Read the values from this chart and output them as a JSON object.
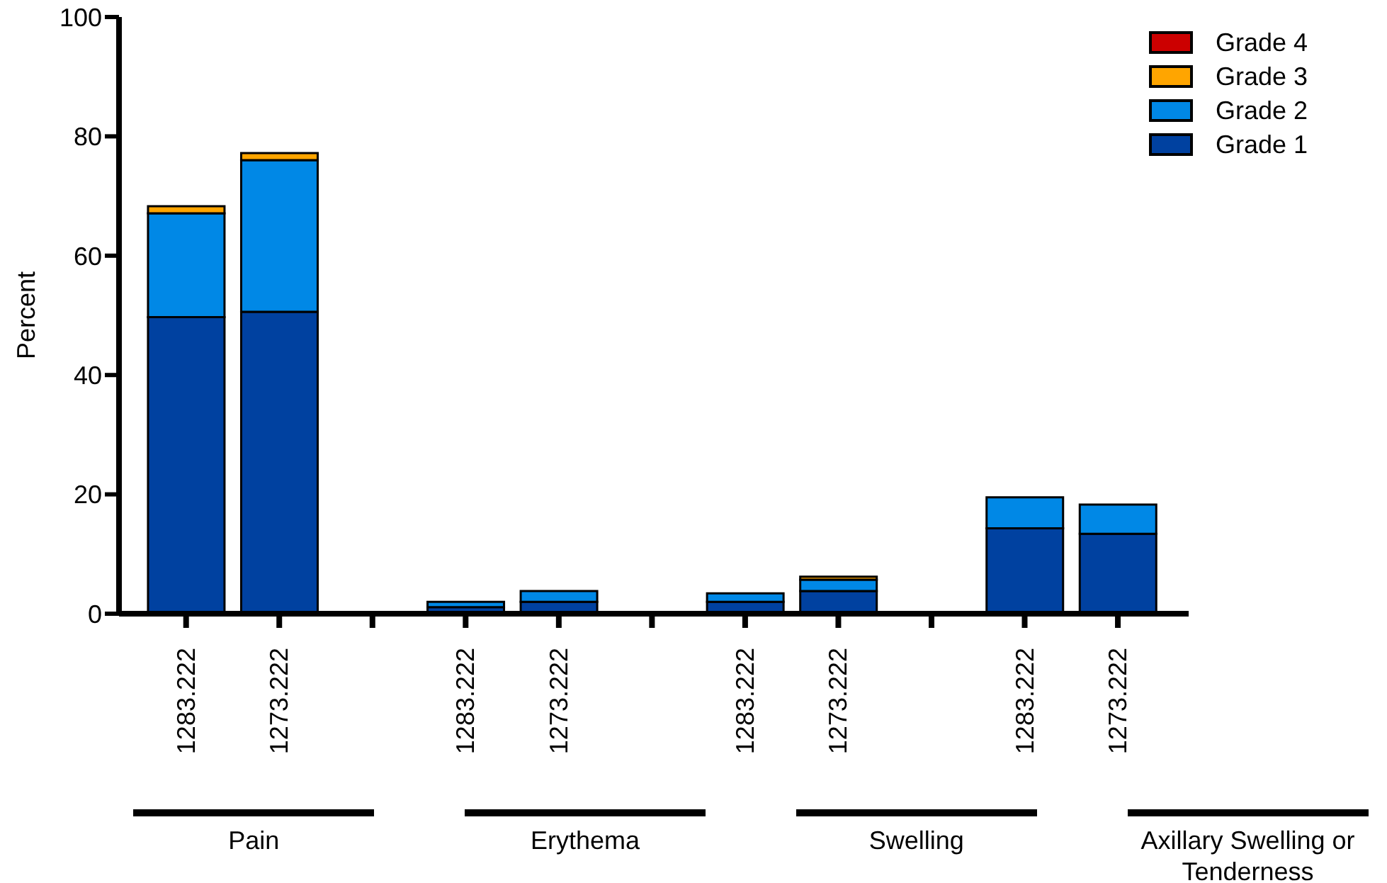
{
  "chart_data": {
    "type": "bar",
    "stacked": true,
    "ylabel": "Percent",
    "categories": [
      "1283.222",
      "1273.222",
      "1283.222",
      "1273.222",
      "1283.222",
      "1273.222",
      "1283.222",
      "1273.222"
    ],
    "series": [
      {
        "name": "Grade 1",
        "color": "#0041a0",
        "values": [
          49.7,
          50.6,
          1.1,
          2.0,
          2.0,
          3.8,
          14.3,
          13.4
        ]
      },
      {
        "name": "Grade 2",
        "color": "#0088e6",
        "values": [
          17.4,
          25.4,
          0.9,
          1.8,
          1.4,
          1.9,
          5.2,
          4.9
        ]
      },
      {
        "name": "Grade 3",
        "color": "#ffa500",
        "values": [
          1.2,
          1.2,
          0,
          0,
          0,
          0.5,
          0,
          0
        ]
      },
      {
        "name": "Grade 4",
        "color": "#cc0000",
        "values": [
          0,
          0,
          0,
          0,
          0,
          0,
          0,
          0
        ]
      }
    ],
    "ylim": [
      0,
      100
    ],
    "yticks": [
      0,
      20,
      40,
      60,
      80,
      100
    ],
    "legend": "top right",
    "annotations": [
      "Pain",
      "Erythema",
      "Swelling",
      "Axillary Swelling or Tenderness"
    ]
  }
}
